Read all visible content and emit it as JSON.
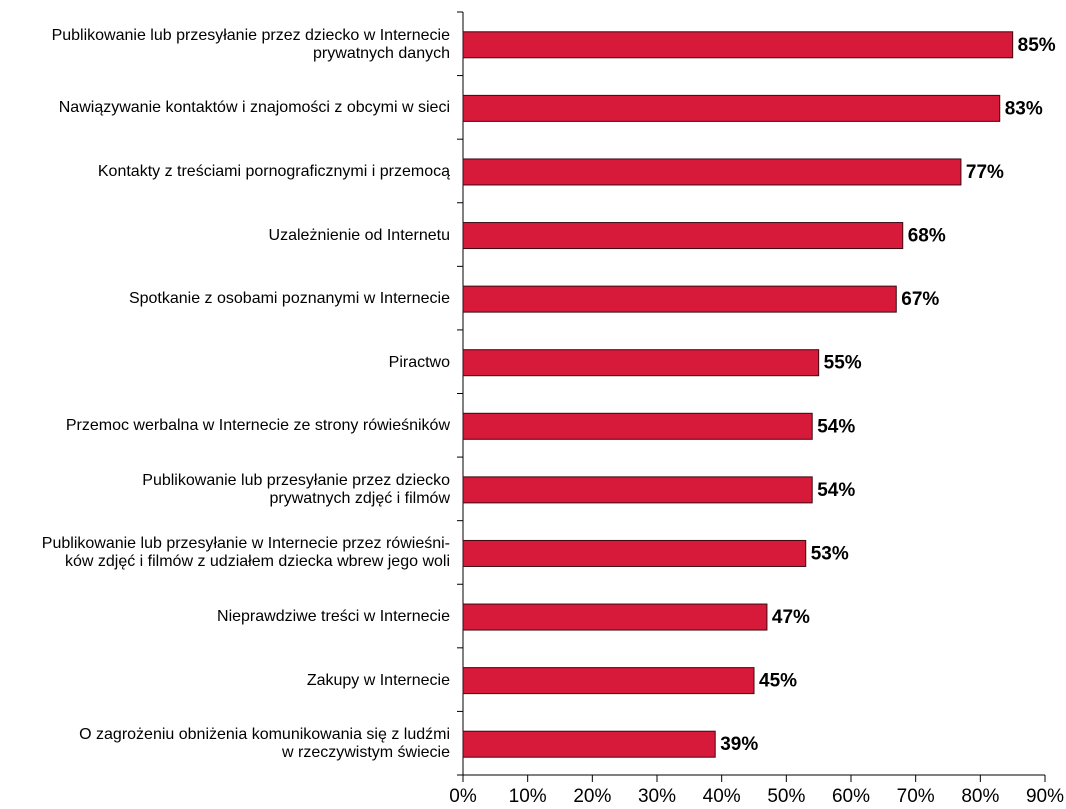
{
  "chart_data": {
    "type": "bar",
    "orientation": "horizontal",
    "categories": [
      "Publikowanie lub przesyłanie przez dziecko w Internecie\nprywatnych danych",
      "Nawiązywanie kontaktów i znajomości z obcymi w sieci",
      "Kontakty z treściami pornograficznymi i przemocą",
      "Uzależnienie od Internetu",
      "Spotkanie z osobami poznanymi w Internecie",
      "Piractwo",
      "Przemoc werbalna w Internecie ze strony rówieśników",
      "Publikowanie lub przesyłanie przez dziecko\nprywatnych zdjęć i filmów",
      "Publikowanie lub przesyłanie w Internecie przez rówieśni-\nków zdjęć i filmów z udziałem dziecka wbrew jego woli",
      "Nieprawdziwe treści w Internecie",
      "Zakupy w Internecie",
      "O zagrożeniu obniżenia komunikowania się z ludźmi\nw  rzeczywistym świecie"
    ],
    "values": [
      85,
      83,
      77,
      68,
      67,
      55,
      54,
      54,
      53,
      47,
      45,
      39
    ],
    "value_labels": [
      "85%",
      "83%",
      "77%",
      "68%",
      "67%",
      "55%",
      "54%",
      "54%",
      "53%",
      "47%",
      "45%",
      "39%"
    ],
    "color": "#d7193a",
    "xlim": [
      0,
      90
    ],
    "xticks": [
      {
        "value": 0,
        "label": "0%"
      },
      {
        "value": 10,
        "label": "10%"
      },
      {
        "value": 20,
        "label": "20%"
      },
      {
        "value": 30,
        "label": "30%"
      },
      {
        "value": 40,
        "label": "40%"
      },
      {
        "value": 50,
        "label": "50%"
      },
      {
        "value": 60,
        "label": "60%"
      },
      {
        "value": 70,
        "label": "70%"
      },
      {
        "value": 80,
        "label": "80%"
      },
      {
        "value": 90,
        "label": "90%"
      }
    ],
    "grid": false
  }
}
